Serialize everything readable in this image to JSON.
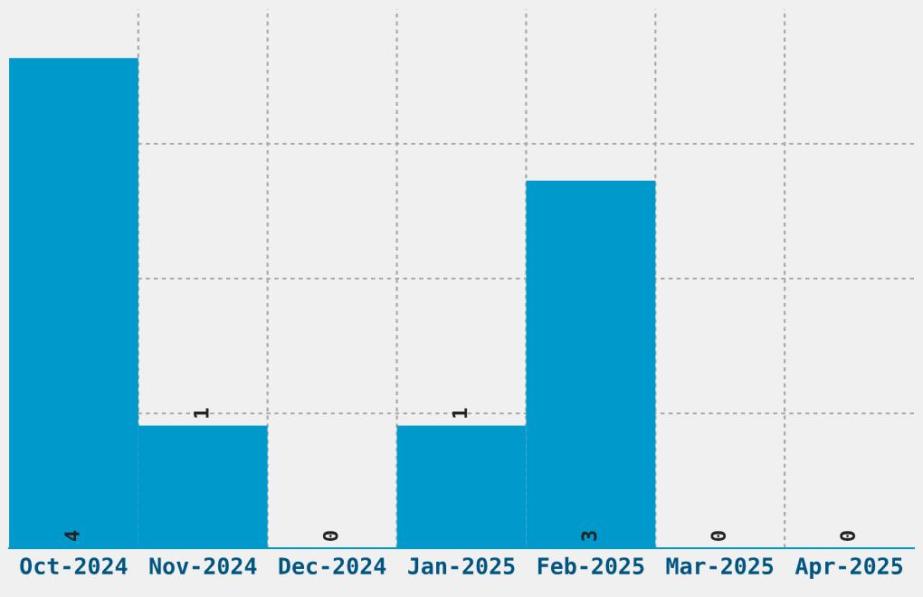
{
  "chart_data": {
    "type": "bar",
    "categories": [
      "Oct-2024",
      "Nov-2024",
      "Dec-2024",
      "Jan-2025",
      "Feb-2025",
      "Mar-2025",
      "Apr-2025"
    ],
    "values": [
      4,
      1,
      0,
      1,
      3,
      0,
      0
    ],
    "color": "#0099cc",
    "data_labels": true,
    "ylim": [
      0,
      4.4
    ],
    "yticks": [
      {
        "value": 1.1,
        "label": null
      },
      {
        "value": 2.2,
        "label": null
      },
      {
        "value": 3.3,
        "label": null
      }
    ],
    "tick_labels": "x",
    "grid": true
  }
}
